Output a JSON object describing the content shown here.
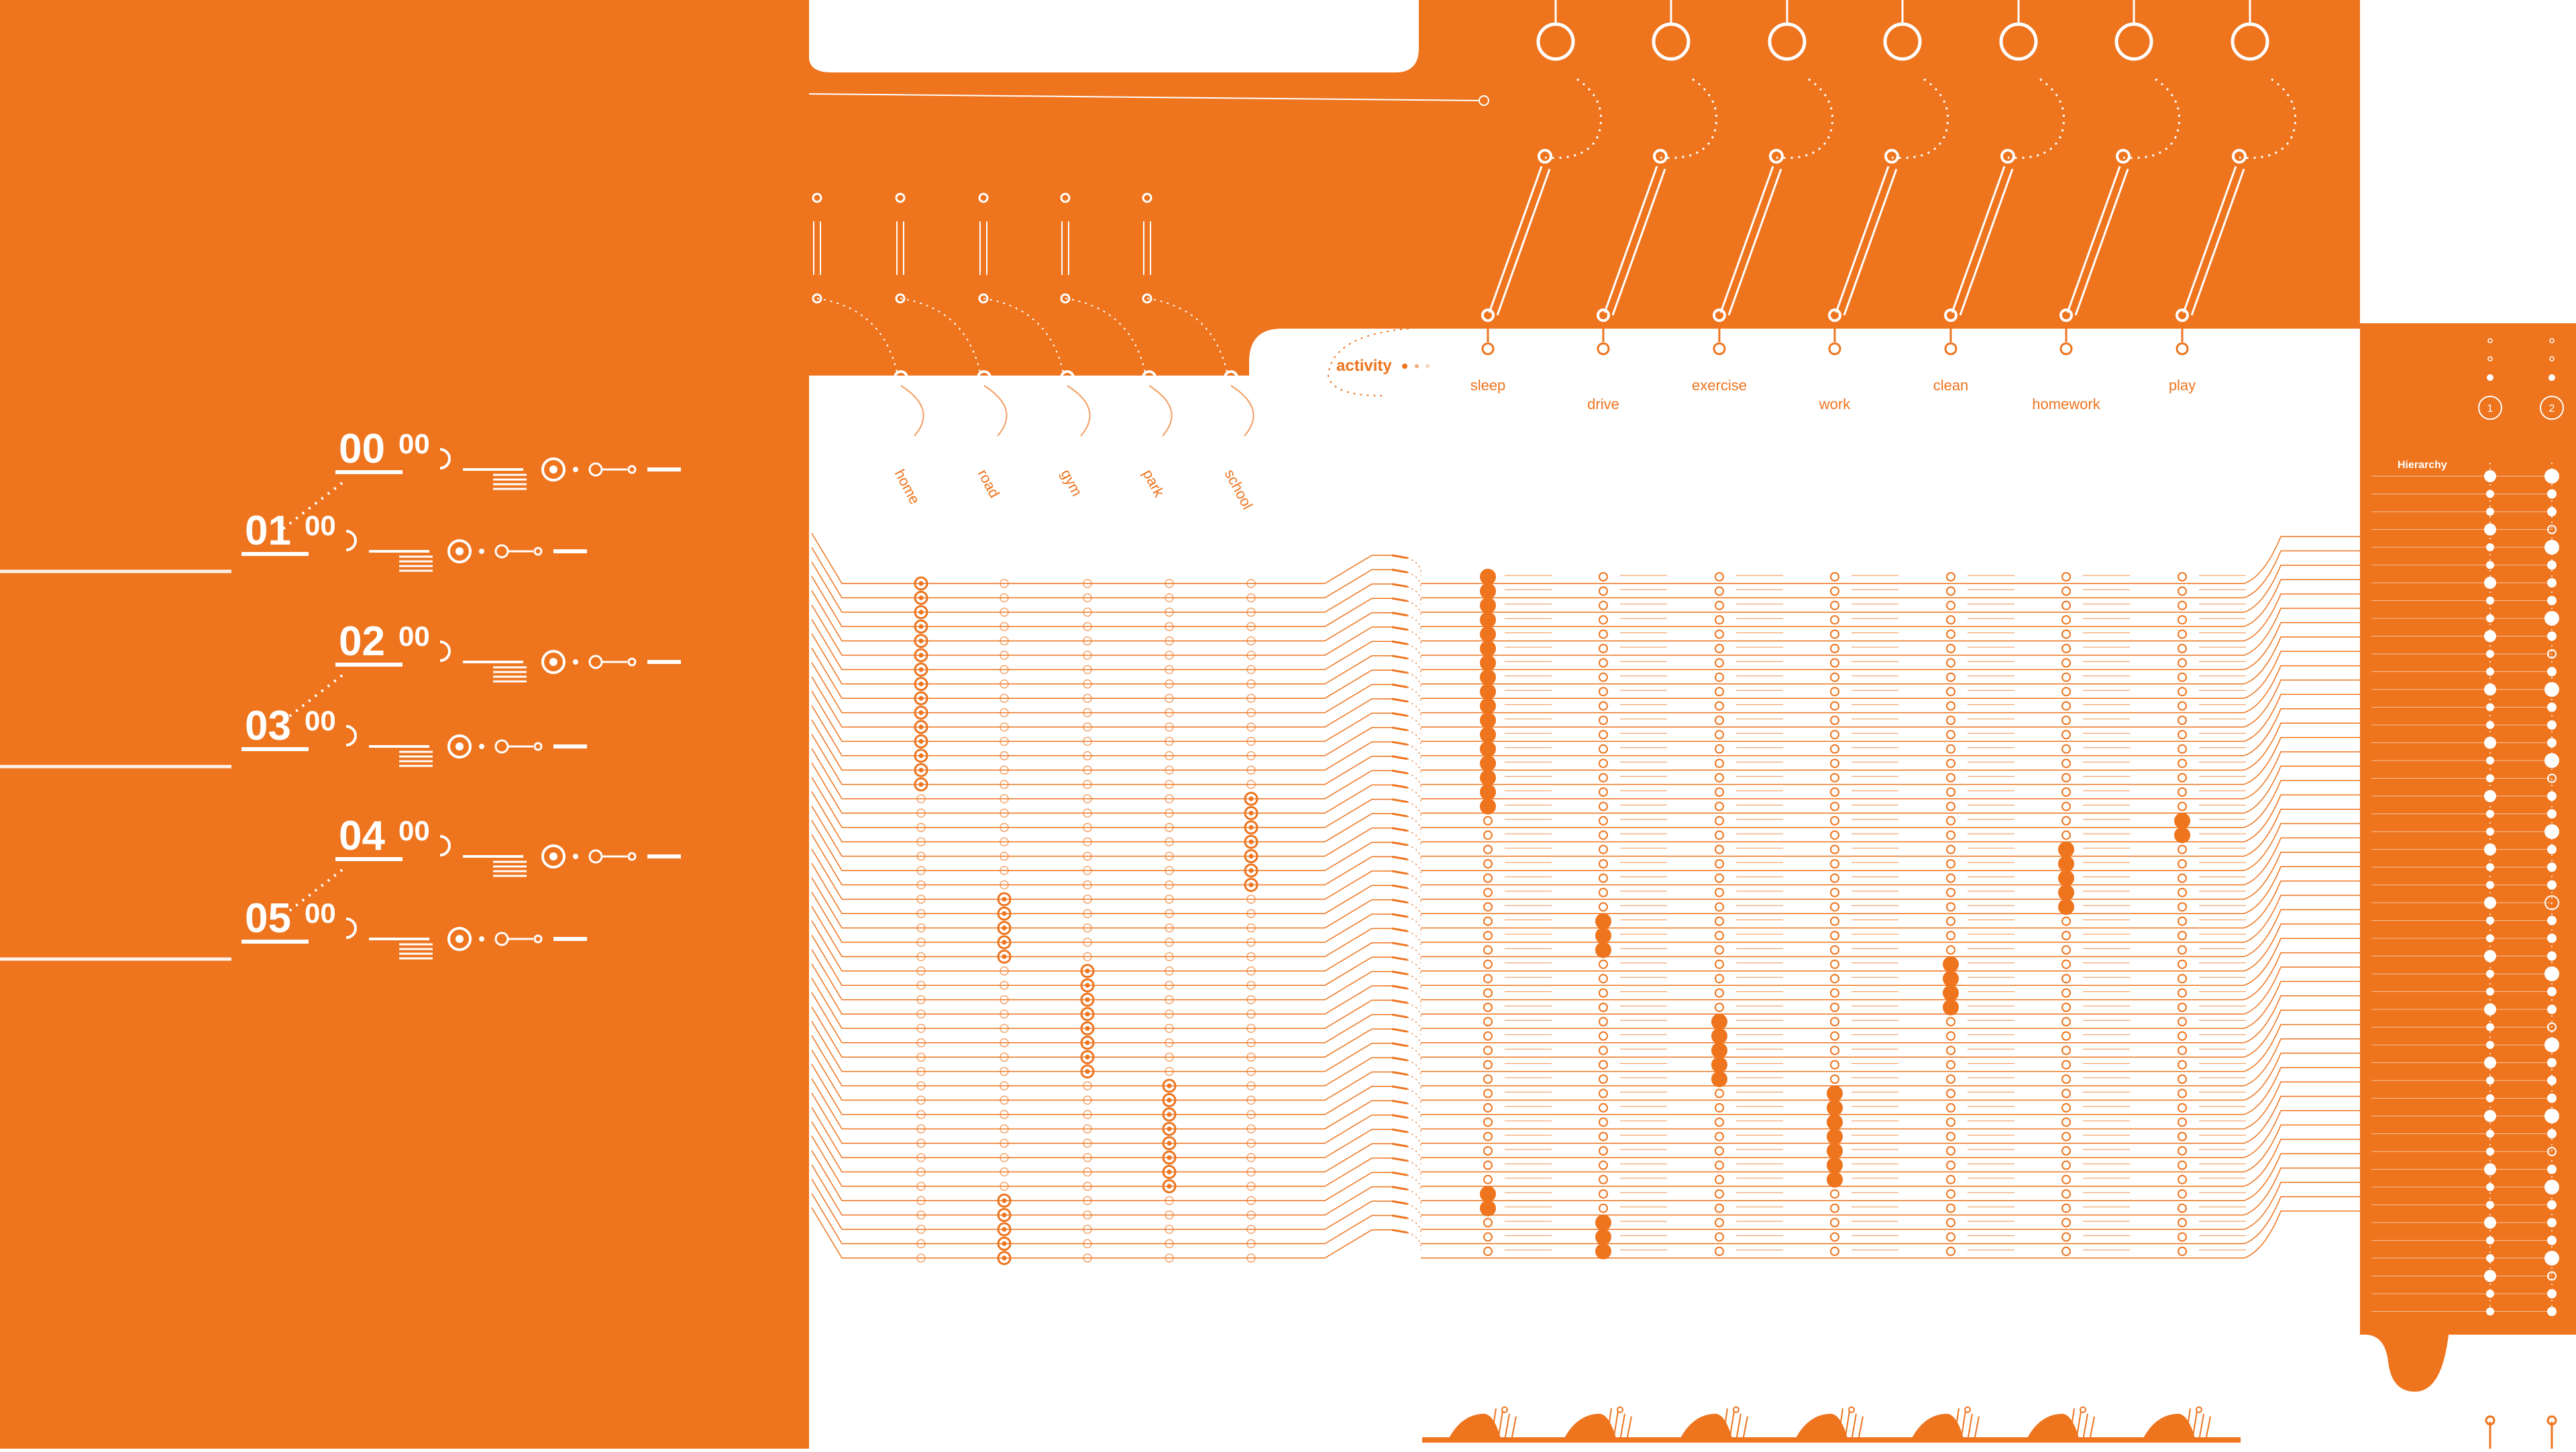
{
  "colors": {
    "accent": "#EE741E",
    "background": "#FFFFFF",
    "line": "#FFFFFF"
  },
  "time_labels": [
    {
      "hour": "00",
      "minute": "00"
    },
    {
      "hour": "01",
      "minute": "00"
    },
    {
      "hour": "02",
      "minute": "00"
    },
    {
      "hour": "03",
      "minute": "00"
    },
    {
      "hour": "04",
      "minute": "00"
    },
    {
      "hour": "05",
      "minute": "00"
    }
  ],
  "locations": [
    "home",
    "road",
    "gym",
    "park",
    "school"
  ],
  "activity_label": "activity",
  "activities": [
    "sleep",
    "drive",
    "exercise",
    "work",
    "clean",
    "homework",
    "play"
  ],
  "hierarchy_label": "Hierarchy",
  "hierarchy_badges": [
    "1",
    "2"
  ],
  "rows": {
    "count": 48,
    "location_index": [
      0,
      0,
      0,
      0,
      0,
      0,
      0,
      0,
      0,
      0,
      0,
      0,
      0,
      0,
      0,
      4,
      4,
      4,
      4,
      4,
      4,
      4,
      1,
      1,
      1,
      1,
      1,
      2,
      2,
      2,
      2,
      2,
      2,
      2,
      2,
      3,
      3,
      3,
      3,
      3,
      3,
      3,
      3,
      1,
      1,
      1,
      1,
      1
    ],
    "activity_index": [
      0,
      0,
      0,
      0,
      0,
      0,
      0,
      0,
      0,
      0,
      0,
      0,
      0,
      0,
      0,
      0,
      0,
      6,
      6,
      5,
      5,
      5,
      5,
      5,
      1,
      1,
      1,
      4,
      4,
      4,
      4,
      2,
      2,
      2,
      2,
      2,
      3,
      3,
      3,
      3,
      3,
      3,
      3,
      0,
      0,
      1,
      1,
      1
    ]
  }
}
